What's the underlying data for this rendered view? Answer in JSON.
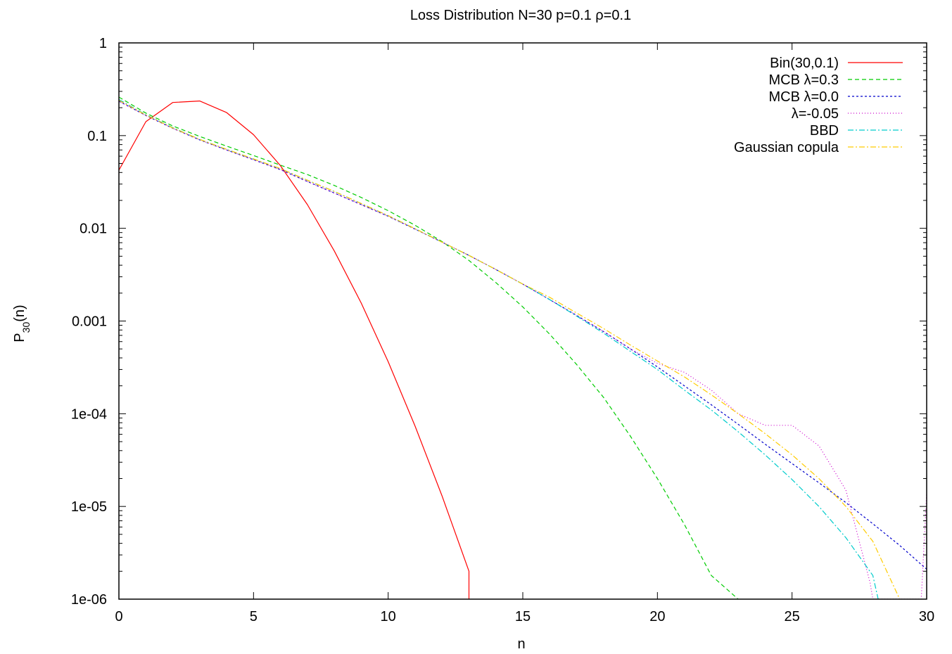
{
  "chart_data": {
    "type": "line",
    "title": "Loss Distribution N=30 p=0.1 ρ=0.1",
    "xlabel": "n",
    "ylabel": {
      "base": "P",
      "sub": "30",
      "tail": "(n)"
    },
    "xlim": [
      0,
      30
    ],
    "ylim": [
      1e-06,
      1
    ],
    "yscale": "log",
    "grid": false,
    "legend_position": "top-right",
    "x_ticks": [
      0,
      5,
      10,
      15,
      20,
      25,
      30
    ],
    "x_tick_labels": [
      "0",
      "5",
      "10",
      "15",
      "20",
      "25",
      "30"
    ],
    "y_ticks": [
      1e-06,
      1e-05,
      0.0001,
      0.001,
      0.01,
      0.1,
      1
    ],
    "y_tick_labels": [
      "1e-06",
      "1e-05",
      "1e-04",
      "0.001",
      "0.01",
      "0.1",
      "1"
    ],
    "series": [
      {
        "name": "Bin(30,0.1)",
        "color": "#ff0000",
        "dash": "none",
        "points": [
          [
            0,
            0.0424
          ],
          [
            1,
            0.1413
          ],
          [
            2,
            0.2277
          ],
          [
            3,
            0.2361
          ],
          [
            4,
            0.1771
          ],
          [
            5,
            0.1023
          ],
          [
            6,
            0.0474
          ],
          [
            7,
            0.018
          ],
          [
            8,
            0.00571
          ],
          [
            9,
            0.00156
          ],
          [
            10,
            0.000364
          ],
          [
            11,
            7.36e-05
          ],
          [
            12,
            1.3e-05
          ],
          [
            13,
            2e-06
          ],
          [
            13,
            1e-06
          ]
        ]
      },
      {
        "name": "MCB λ=0.3",
        "color": "#00cc00",
        "dash": "6,4",
        "points": [
          [
            0,
            0.26
          ],
          [
            1,
            0.175
          ],
          [
            2,
            0.127
          ],
          [
            3,
            0.098
          ],
          [
            4,
            0.077
          ],
          [
            5,
            0.061
          ],
          [
            6,
            0.048
          ],
          [
            7,
            0.038
          ],
          [
            8,
            0.029
          ],
          [
            9,
            0.0215
          ],
          [
            10,
            0.0155
          ],
          [
            11,
            0.0108
          ],
          [
            12,
            0.0072
          ],
          [
            13,
            0.0045
          ],
          [
            14,
            0.0026
          ],
          [
            15,
            0.00142
          ],
          [
            16,
            0.00072
          ],
          [
            17,
            0.00034
          ],
          [
            18,
            0.00015
          ],
          [
            19,
            5.7e-05
          ],
          [
            20,
            2e-05
          ],
          [
            21,
            6.4e-06
          ],
          [
            22,
            1.8e-06
          ],
          [
            23,
            1e-06
          ]
        ]
      },
      {
        "name": "MCB λ=0.0",
        "color": "#0000cc",
        "dash": "3,3",
        "points": [
          [
            0,
            0.235
          ],
          [
            1,
            0.165
          ],
          [
            2,
            0.12
          ],
          [
            3,
            0.09
          ],
          [
            4,
            0.07
          ],
          [
            5,
            0.055
          ],
          [
            6,
            0.043
          ],
          [
            7,
            0.032
          ],
          [
            8,
            0.024
          ],
          [
            9,
            0.018
          ],
          [
            10,
            0.0135
          ],
          [
            11,
            0.0098
          ],
          [
            12,
            0.0071
          ],
          [
            13,
            0.0051
          ],
          [
            14,
            0.0036
          ],
          [
            15,
            0.0025
          ],
          [
            16,
            0.0017
          ],
          [
            17,
            0.00115
          ],
          [
            18,
            0.00077
          ],
          [
            19,
            0.0005
          ],
          [
            20,
            0.00032
          ],
          [
            21,
            0.0002
          ],
          [
            22,
            0.000125
          ],
          [
            23,
            7.7e-05
          ],
          [
            24,
            4.7e-05
          ],
          [
            25,
            2.9e-05
          ],
          [
            26,
            1.8e-05
          ],
          [
            27,
            1.1e-05
          ],
          [
            28,
            6.5e-06
          ],
          [
            29,
            3.8e-06
          ],
          [
            30,
            2.1e-06
          ]
        ]
      },
      {
        "name": "λ=-0.05",
        "color": "#cc00cc",
        "dash": "1,3",
        "points": [
          [
            0,
            0.235
          ],
          [
            1,
            0.165
          ],
          [
            2,
            0.12
          ],
          [
            3,
            0.09
          ],
          [
            4,
            0.07
          ],
          [
            5,
            0.055
          ],
          [
            6,
            0.043
          ],
          [
            7,
            0.032
          ],
          [
            8,
            0.024
          ],
          [
            9,
            0.018
          ],
          [
            10,
            0.0135
          ],
          [
            11,
            0.0098
          ],
          [
            12,
            0.0071
          ],
          [
            13,
            0.0051
          ],
          [
            14,
            0.0036
          ],
          [
            15,
            0.0025
          ],
          [
            16,
            0.0017
          ],
          [
            17,
            0.00115
          ],
          [
            18,
            0.00077
          ],
          [
            19,
            0.0005
          ],
          [
            20,
            0.00035
          ],
          [
            21,
            0.00028
          ],
          [
            22,
            0.00018
          ],
          [
            23,
            0.0001
          ],
          [
            24,
            7.5e-05
          ],
          [
            25,
            7.5e-05
          ],
          [
            26,
            4.5e-05
          ],
          [
            27,
            1.5e-05
          ],
          [
            27.9,
            1.5e-06
          ],
          [
            28,
            1e-06
          ],
          [
            29.8,
            1e-06
          ],
          [
            30,
            1.4e-05
          ]
        ]
      },
      {
        "name": "BBD",
        "color": "#00cccc",
        "dash": "8,3,2,3",
        "points": [
          [
            0,
            0.245
          ],
          [
            1,
            0.168
          ],
          [
            2,
            0.122
          ],
          [
            3,
            0.091
          ],
          [
            4,
            0.071
          ],
          [
            5,
            0.056
          ],
          [
            6,
            0.044
          ],
          [
            7,
            0.033
          ],
          [
            8,
            0.025
          ],
          [
            9,
            0.0185
          ],
          [
            10,
            0.0137
          ],
          [
            11,
            0.0099
          ],
          [
            12,
            0.0071
          ],
          [
            13,
            0.0051
          ],
          [
            14,
            0.0036
          ],
          [
            15,
            0.0025
          ],
          [
            16,
            0.0017
          ],
          [
            17,
            0.00113
          ],
          [
            18,
            0.00074
          ],
          [
            19,
            0.00047
          ],
          [
            20,
            0.0003
          ],
          [
            21,
            0.00018
          ],
          [
            22,
            0.00011
          ],
          [
            23,
            6.4e-05
          ],
          [
            24,
            3.6e-05
          ],
          [
            25,
            1.95e-05
          ],
          [
            26,
            1e-05
          ],
          [
            27,
            4.6e-06
          ],
          [
            28,
            1.8e-06
          ],
          [
            28.2,
            1e-06
          ]
        ]
      },
      {
        "name": "Gaussian copula",
        "color": "#ffcc00",
        "dash": "8,3,2,3",
        "points": [
          [
            0,
            0.24
          ],
          [
            1,
            0.167
          ],
          [
            2,
            0.121
          ],
          [
            3,
            0.091
          ],
          [
            4,
            0.071
          ],
          [
            5,
            0.056
          ],
          [
            6,
            0.044
          ],
          [
            7,
            0.033
          ],
          [
            8,
            0.025
          ],
          [
            9,
            0.0185
          ],
          [
            10,
            0.0137
          ],
          [
            11,
            0.0099
          ],
          [
            12,
            0.0071
          ],
          [
            13,
            0.0051
          ],
          [
            14,
            0.0036
          ],
          [
            15,
            0.0025
          ],
          [
            16,
            0.0018
          ],
          [
            17,
            0.00122
          ],
          [
            18,
            0.00083
          ],
          [
            19,
            0.00055
          ],
          [
            20,
            0.00037
          ],
          [
            21,
            0.00025
          ],
          [
            22,
            0.00016
          ],
          [
            23,
            0.0001
          ],
          [
            24,
            6.1e-05
          ],
          [
            25,
            3.6e-05
          ],
          [
            26,
            2e-05
          ],
          [
            27,
            1e-05
          ],
          [
            28,
            4.2e-06
          ],
          [
            29,
            1e-06
          ]
        ]
      }
    ]
  }
}
